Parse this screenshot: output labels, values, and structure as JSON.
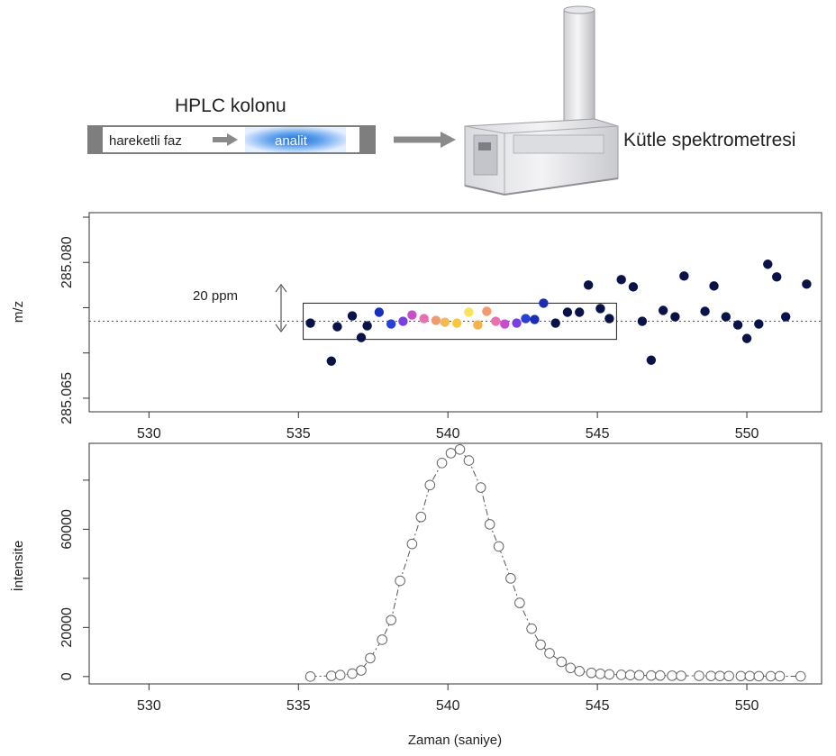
{
  "header": {
    "column_title": "HPLC kolonu",
    "mobile_phase": "hareketli faz",
    "analyte": "analit",
    "ms_label": "Kütle spektrometresi"
  },
  "chart_data": [
    {
      "type": "scatter",
      "title": "",
      "xlabel": "",
      "ylabel": "m/z",
      "xlim": [
        528,
        552.5
      ],
      "ylim": [
        285.0635,
        285.0855
      ],
      "xticks": [
        "530",
        "535",
        "540",
        "545",
        "550"
      ],
      "yticks": [
        "285.065",
        "285.080"
      ],
      "ytick_values": [
        285.065,
        285.08
      ],
      "reference_line": 285.0735,
      "window_label": "20 ppm",
      "window": {
        "x": [
          535.4,
          545.4
        ],
        "y": [
          285.0715,
          285.0755
        ]
      },
      "series": [
        {
          "points": [
            {
              "x": 535.4,
              "y": 285.0733,
              "c": "#0a1347"
            },
            {
              "x": 536.1,
              "y": 285.0691,
              "c": "#0a1347"
            },
            {
              "x": 536.3,
              "y": 285.0729,
              "c": "#0a1347"
            },
            {
              "x": 536.8,
              "y": 285.0741,
              "c": "#0a1347"
            },
            {
              "x": 537.1,
              "y": 285.0717,
              "c": "#0a1347"
            },
            {
              "x": 537.3,
              "y": 285.073,
              "c": "#0a1347"
            },
            {
              "x": 537.7,
              "y": 285.0745,
              "c": "#1a2fb8"
            },
            {
              "x": 538.1,
              "y": 285.0732,
              "c": "#2940d6"
            },
            {
              "x": 538.5,
              "y": 285.0735,
              "c": "#7a3fe0"
            },
            {
              "x": 538.8,
              "y": 285.0742,
              "c": "#c94bd0"
            },
            {
              "x": 539.2,
              "y": 285.0738,
              "c": "#e86fb0"
            },
            {
              "x": 539.6,
              "y": 285.0736,
              "c": "#f29a6e"
            },
            {
              "x": 539.9,
              "y": 285.0734,
              "c": "#f7b955"
            },
            {
              "x": 540.3,
              "y": 285.0733,
              "c": "#f7c741"
            },
            {
              "x": 540.7,
              "y": 285.0745,
              "c": "#f7e35c"
            },
            {
              "x": 541.0,
              "y": 285.0731,
              "c": "#f6b24a"
            },
            {
              "x": 541.3,
              "y": 285.0746,
              "c": "#f29a6e"
            },
            {
              "x": 541.6,
              "y": 285.0735,
              "c": "#e86fb0"
            },
            {
              "x": 541.9,
              "y": 285.0732,
              "c": "#c94bd0"
            },
            {
              "x": 542.3,
              "y": 285.0733,
              "c": "#7a3fe0"
            },
            {
              "x": 542.6,
              "y": 285.0738,
              "c": "#2940d6"
            },
            {
              "x": 542.9,
              "y": 285.0737,
              "c": "#1a2fb8"
            },
            {
              "x": 543.2,
              "y": 285.0755,
              "c": "#1b2db0"
            },
            {
              "x": 543.6,
              "y": 285.0733,
              "c": "#0a1347"
            },
            {
              "x": 544.0,
              "y": 285.0745,
              "c": "#0a1347"
            },
            {
              "x": 544.4,
              "y": 285.0745,
              "c": "#0a1347"
            },
            {
              "x": 544.7,
              "y": 285.0775,
              "c": "#0a1347"
            },
            {
              "x": 545.1,
              "y": 285.0749,
              "c": "#0a1347"
            },
            {
              "x": 545.4,
              "y": 285.0738,
              "c": "#0a1347"
            },
            {
              "x": 545.8,
              "y": 285.0781,
              "c": "#0a1347"
            },
            {
              "x": 546.2,
              "y": 285.0773,
              "c": "#0a1347"
            },
            {
              "x": 546.5,
              "y": 285.0735,
              "c": "#0a1347"
            },
            {
              "x": 546.8,
              "y": 285.0692,
              "c": "#0a1347"
            },
            {
              "x": 547.2,
              "y": 285.0747,
              "c": "#0a1347"
            },
            {
              "x": 547.6,
              "y": 285.074,
              "c": "#0a1347"
            },
            {
              "x": 547.9,
              "y": 285.0785,
              "c": "#0a1347"
            },
            {
              "x": 548.6,
              "y": 285.0746,
              "c": "#0a1347"
            },
            {
              "x": 548.9,
              "y": 285.0774,
              "c": "#0a1347"
            },
            {
              "x": 549.3,
              "y": 285.074,
              "c": "#0a1347"
            },
            {
              "x": 549.7,
              "y": 285.0731,
              "c": "#0a1347"
            },
            {
              "x": 550.0,
              "y": 285.0716,
              "c": "#0a1347"
            },
            {
              "x": 550.4,
              "y": 285.0732,
              "c": "#0a1347"
            },
            {
              "x": 550.7,
              "y": 285.0798,
              "c": "#0a1347"
            },
            {
              "x": 551.0,
              "y": 285.0784,
              "c": "#0a1347"
            },
            {
              "x": 551.3,
              "y": 285.074,
              "c": "#0a1347"
            },
            {
              "x": 552.0,
              "y": 285.0776,
              "c": "#0a1347"
            }
          ]
        }
      ]
    },
    {
      "type": "line",
      "title": "",
      "xlabel": "Zaman (saniye)",
      "ylabel": "İntensite",
      "xlim": [
        528,
        552.5
      ],
      "ylim": [
        -3000,
        95000
      ],
      "xticks": [
        "530",
        "535",
        "540",
        "545",
        "550"
      ],
      "yticks": [
        "0",
        "20000",
        "60000"
      ],
      "ytick_values": [
        0,
        20000,
        60000
      ],
      "series": [
        {
          "style": "dash-dot line with open circle markers",
          "x": [
            535.4,
            536.1,
            536.4,
            536.8,
            537.1,
            537.4,
            537.8,
            538.1,
            538.4,
            538.8,
            539.1,
            539.4,
            539.8,
            540.1,
            540.4,
            540.7,
            541.1,
            541.4,
            541.7,
            542.1,
            542.4,
            542.8,
            543.1,
            543.4,
            543.8,
            544.1,
            544.4,
            544.8,
            545.1,
            545.4,
            545.8,
            546.1,
            546.4,
            546.8,
            547.1,
            547.5,
            547.8,
            548.4,
            548.8,
            549.1,
            549.4,
            549.8,
            550.1,
            550.4,
            550.8,
            551.1,
            551.8
          ],
          "y": [
            0,
            300,
            600,
            1200,
            2500,
            7500,
            15000,
            23000,
            39000,
            54000,
            65000,
            78000,
            87000,
            91000,
            92500,
            88000,
            77000,
            62000,
            53000,
            40000,
            30000,
            19500,
            13000,
            9500,
            6000,
            3500,
            2200,
            1500,
            1100,
            900,
            700,
            600,
            500,
            400,
            400,
            350,
            300,
            300,
            250,
            250,
            200,
            200,
            200,
            150,
            150,
            150,
            100
          ]
        }
      ]
    }
  ]
}
